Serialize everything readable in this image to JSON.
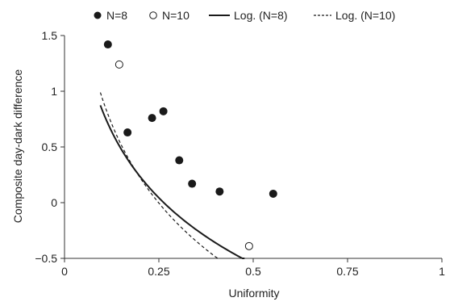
{
  "chart_data": {
    "type": "scatter",
    "xlabel": "Uniformity",
    "ylabel": "Composite day-dark difference",
    "xlim": [
      0,
      1
    ],
    "ylim": [
      -0.5,
      1.5
    ],
    "x_ticks": [
      {
        "value": 0,
        "label": "0"
      },
      {
        "value": 0.25,
        "label": "0.25"
      },
      {
        "value": 0.5,
        "label": "0.5"
      },
      {
        "value": 0.75,
        "label": "0.75"
      },
      {
        "value": 1,
        "label": "1"
      }
    ],
    "y_ticks": [
      {
        "value": -0.5,
        "label": "−0.5"
      },
      {
        "value": 0,
        "label": "0"
      },
      {
        "value": 0.5,
        "label": "0.5"
      },
      {
        "value": 1,
        "label": "1"
      },
      {
        "value": 1.5,
        "label": "1.5"
      }
    ],
    "grid": false,
    "legend_position": "top",
    "series": [
      {
        "name": "N=8",
        "marker": "filled-circle",
        "color": "#1a1a1a",
        "points": [
          {
            "x": 0.115,
            "y": 1.42
          },
          {
            "x": 0.167,
            "y": 0.63
          },
          {
            "x": 0.232,
            "y": 0.76
          },
          {
            "x": 0.262,
            "y": 0.82
          },
          {
            "x": 0.304,
            "y": 0.38
          },
          {
            "x": 0.338,
            "y": 0.17
          },
          {
            "x": 0.411,
            "y": 0.1
          },
          {
            "x": 0.553,
            "y": 0.08
          }
        ]
      },
      {
        "name": "N=10",
        "marker": "open-circle",
        "color": "#1a1a1a",
        "points": [
          {
            "x": 0.145,
            "y": 1.24
          },
          {
            "x": 0.489,
            "y": -0.39
          }
        ]
      }
    ],
    "trendlines": [
      {
        "name": "Log. (N=8)",
        "style": "solid",
        "color": "#1a1a1a",
        "model": "logarithmic",
        "a": -1.146,
        "b": -0.858,
        "x_range": [
          0.095,
          0.75
        ]
      },
      {
        "name": "Log. (N=10)",
        "style": "dashed",
        "color": "#1a1a1a",
        "model": "logarithmic",
        "a": -1.426,
        "b": -1.026,
        "x_range": [
          0.095,
          0.75
        ]
      }
    ]
  }
}
